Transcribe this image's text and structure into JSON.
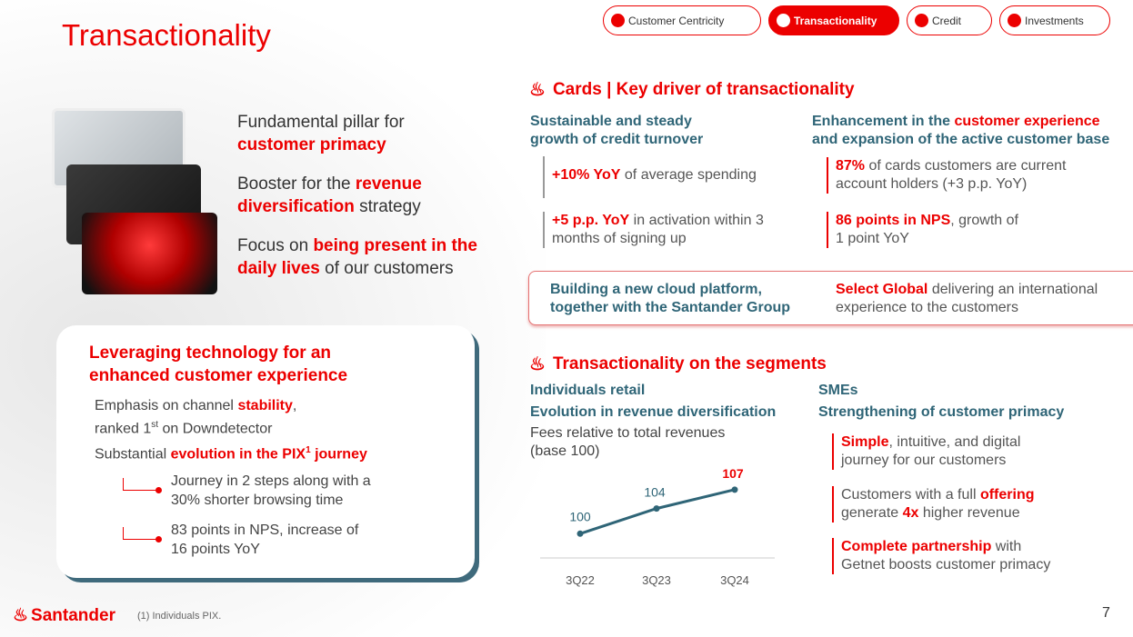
{
  "title": "Transactionality",
  "tabs": [
    "Customer Centricity",
    "Transactionality",
    "Credit",
    "Investments"
  ],
  "pillars": [
    {
      "a": "Fundamental pillar for",
      "b": "customer primacy",
      "c": ""
    },
    {
      "a": "Booster for the ",
      "b": "revenue diversification",
      "c": " strategy"
    },
    {
      "a": "Focus on ",
      "b": "being present in the daily lives",
      "c": " of our customers"
    }
  ],
  "tech": {
    "title": "Leveraging technology for an enhanced customer experience",
    "p1a": "Emphasis on channel ",
    "p1b": "stability",
    "p1c": ",",
    "p1d": "ranked 1",
    "p1sup": "st",
    "p1e": " on Downdetector",
    "p2a": "Substantial ",
    "p2b": "evolution in the PIX",
    "p2sup": "1",
    "p2c": " journey",
    "b1": "Journey in 2 steps along with a 30% shorter browsing time",
    "b2": "83 points in NPS, increase of 16 points YoY"
  },
  "cards": {
    "title": "Cards | Key driver of transactionality",
    "left_head": "Sustainable and steady growth of credit turnover",
    "right_head_a": "Enhancement in the ",
    "right_head_b": "customer experience",
    "right_head_c": "and expansion of the active customer base",
    "l1b": "+10% YoY",
    "l1": " of average spending",
    "l2b": "+5 p.p. YoY",
    "l2": " in activation within 3 months of signing up",
    "r1b": "87%",
    "r1": " of cards customers are current account holders (+3 p.p. YoY)",
    "r2b": "86 points in NPS",
    "r2": ", growth of 1 point YoY",
    "callout_left": "Building a new cloud platform, together with the Santander Group",
    "callout_rb": "Select Global",
    "callout_r": " delivering an international experience to the customers"
  },
  "segments": {
    "title": "Transactionality on the segments",
    "ind": "Individuals retail",
    "ind_sub": "Evolution in revenue diversification",
    "ind_desc": "Fees relative to total revenues (base 100)",
    "smes": "SMEs",
    "smes_sub": "Strengthening of customer primacy",
    "s1b": "Simple",
    "s1": ", intuitive, and digital journey for our customers",
    "s2a": "Customers with a full ",
    "s2b": "offering",
    "s2c": " generate ",
    "s2d": "4x",
    "s2e": " higher revenue",
    "s3b": "Complete partnership",
    "s3": " with Getnet boosts customer primacy"
  },
  "chart_data": {
    "type": "line",
    "categories": [
      "3Q22",
      "3Q23",
      "3Q24"
    ],
    "values": [
      100,
      104,
      107
    ],
    "labels": [
      "100",
      "104",
      "107"
    ],
    "ylim": [
      96,
      109
    ]
  },
  "footer": {
    "logo": "Santander",
    "note": "(1) Individuals PIX.",
    "page": "7"
  },
  "colors": {
    "red": "#ec0000",
    "teal": "#2f6577"
  }
}
